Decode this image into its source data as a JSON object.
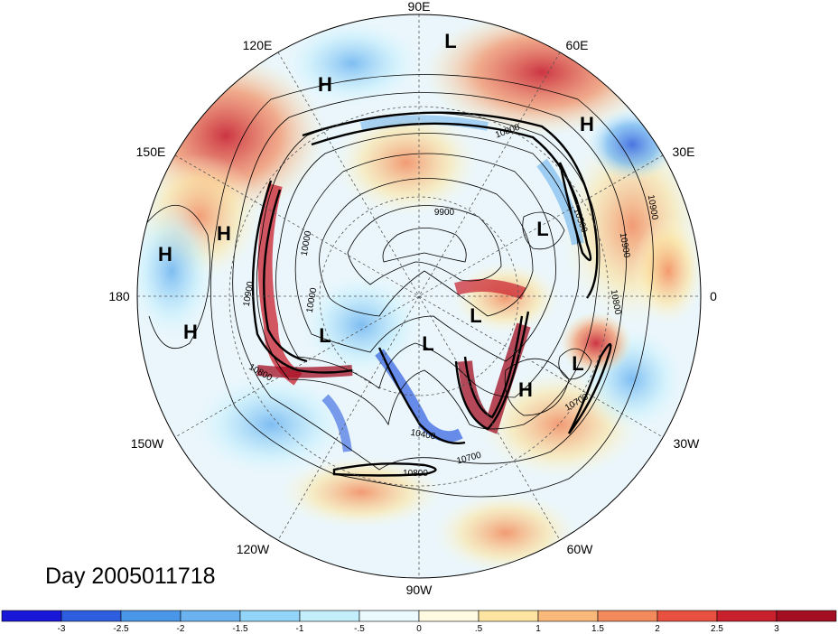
{
  "map": {
    "projection": "polar stereographic (north pole)",
    "longitude_labels": {
      "lon_90e": "90E",
      "lon_60e": "60E",
      "lon_30e": "30E",
      "lon_0": "0",
      "lon_30w": "30W",
      "lon_60w": "60W",
      "lon_90w": "90W",
      "lon_120w": "120W",
      "lon_150w": "150W",
      "lon_180": "180",
      "lon_150e": "150E",
      "lon_120e": "120E"
    },
    "pressure_centers": [
      {
        "label": "L",
        "lon": "90E"
      },
      {
        "label": "H",
        "lon": "115E"
      },
      {
        "label": "H",
        "lon": "45E"
      },
      {
        "label": "L",
        "lon": "20E"
      },
      {
        "label": "H",
        "lon": "155E"
      },
      {
        "label": "H",
        "lon": "170E"
      },
      {
        "label": "H",
        "lon": "175W"
      },
      {
        "label": "L",
        "lon": "130W"
      },
      {
        "label": "L",
        "lon": "100W"
      },
      {
        "label": "L",
        "lon": "30W"
      },
      {
        "label": "H",
        "lon": "50W"
      },
      {
        "label": "L",
        "lon": "10W"
      }
    ],
    "contour_labels": [
      "10800",
      "10900",
      "9900",
      "10000",
      "10900",
      "10800",
      "10800",
      "10000",
      "10400",
      "10700",
      "10800",
      "10700",
      "10500",
      "10900"
    ],
    "date_label": "Day 2005011718"
  },
  "colorbar": {
    "colors": [
      "#1a18d8",
      "#2d5ee0",
      "#4a97ea",
      "#6bb3f0",
      "#93d5f8",
      "#c3eefc",
      "#eafaff",
      "#fffbe0",
      "#fde4a0",
      "#f9b97b",
      "#f38a5c",
      "#e8503f",
      "#c9202e",
      "#a30e22"
    ],
    "ticks": [
      "-3",
      "-2.5",
      "-2",
      "-1.5",
      "-1",
      "-.5",
      "0",
      ".5",
      "1",
      "1.5",
      "2",
      "2.5",
      "3"
    ]
  }
}
